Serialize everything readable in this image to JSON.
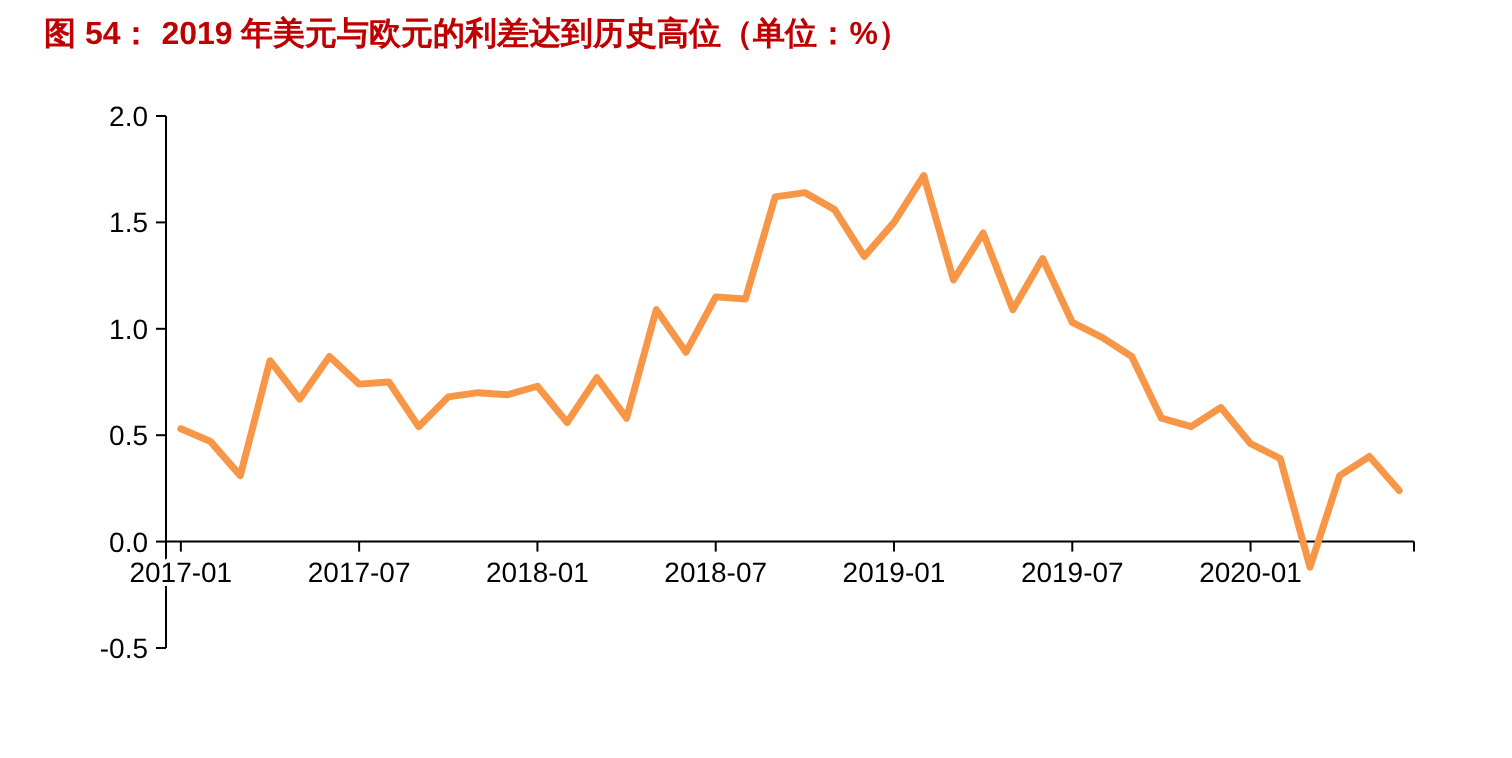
{
  "chart_data": {
    "type": "line",
    "title": "图 54：  2019 年美元与欧元的利差达到历史高位（单位：%）",
    "categories": [
      "2017-01",
      null,
      null,
      null,
      null,
      null,
      "2017-07",
      null,
      null,
      null,
      null,
      null,
      "2018-01",
      null,
      null,
      null,
      null,
      null,
      "2018-07",
      null,
      null,
      null,
      null,
      null,
      "2019-01",
      null,
      null,
      null,
      null,
      null,
      "2019-07",
      null,
      null,
      null,
      null,
      null,
      "2020-01",
      null,
      null,
      null,
      null,
      null
    ],
    "series": [
      {
        "color": "#f79646",
        "values": [
          0.53,
          0.47,
          0.31,
          0.85,
          0.67,
          0.87,
          0.74,
          0.75,
          0.54,
          0.68,
          0.7,
          0.69,
          0.73,
          0.56,
          0.77,
          0.58,
          1.09,
          0.89,
          1.15,
          1.14,
          1.62,
          1.64,
          1.56,
          1.34,
          1.5,
          1.72,
          1.23,
          1.45,
          1.09,
          1.33,
          1.03,
          0.96,
          0.87,
          0.58,
          0.54,
          0.63,
          0.46,
          0.39,
          -0.12,
          0.31,
          0.4,
          0.24
        ]
      }
    ],
    "ylim": [
      -0.5,
      2.0
    ],
    "yticks": [
      {
        "value": -0.5,
        "label": "-0.5"
      },
      {
        "value": 0,
        "label": "0.0"
      },
      {
        "value": 0.5,
        "label": "0.5"
      },
      {
        "value": 1,
        "label": "1.0"
      },
      {
        "value": 1.5,
        "label": "1.5"
      },
      {
        "value": 2,
        "label": "2.0"
      }
    ],
    "grid": false,
    "marker": "none",
    "line_style": "solid"
  }
}
